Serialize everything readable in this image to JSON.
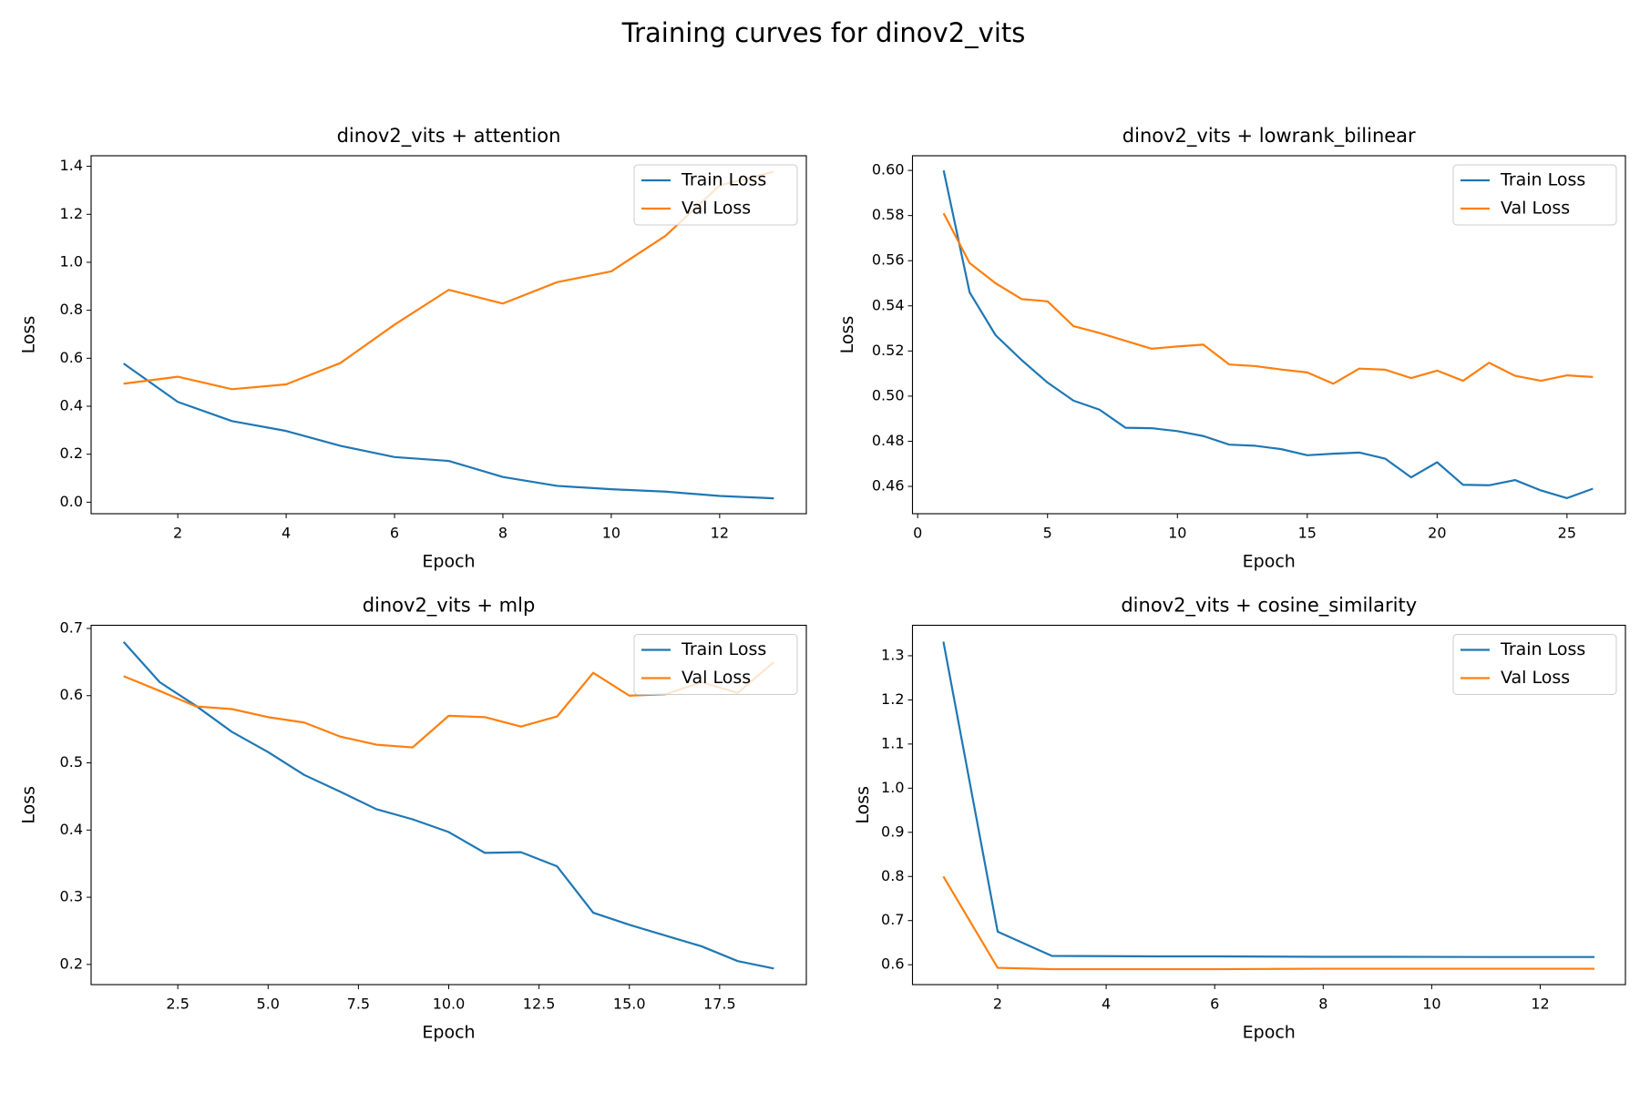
{
  "title": "Training curves for dinov2_vits",
  "chart_data": [
    {
      "type": "line",
      "title": "dinov2_vits + attention",
      "xlabel": "Epoch",
      "ylabel": "Loss",
      "x": [
        1,
        2,
        3,
        4,
        5,
        6,
        7,
        8,
        9,
        10,
        11,
        12,
        13
      ],
      "series": [
        {
          "name": "Train Loss",
          "color": "#1f77b4",
          "values": [
            0.578,
            0.418,
            0.338,
            0.297,
            0.235,
            0.188,
            0.172,
            0.105,
            0.068,
            0.054,
            0.044,
            0.026,
            0.016
          ]
        },
        {
          "name": "Val Loss",
          "color": "#ff7f0e",
          "values": [
            0.494,
            0.523,
            0.471,
            0.491,
            0.58,
            0.74,
            0.885,
            0.828,
            0.917,
            0.962,
            1.11,
            1.32,
            1.378
          ]
        }
      ],
      "xlim": [
        0.4,
        13.6
      ],
      "ylim": [
        -0.048,
        1.444
      ],
      "xticks": [
        2,
        4,
        6,
        8,
        10,
        12
      ],
      "yticks": [
        {
          "value": 0,
          "label": "0.0"
        },
        0.2,
        0.4,
        0.6,
        0.8,
        {
          "value": 1,
          "label": "1.0"
        },
        1.2,
        1.4
      ],
      "legend": "upper right"
    },
    {
      "type": "line",
      "title": "dinov2_vits + lowrank_bilinear",
      "xlabel": "Epoch",
      "ylabel": "Loss",
      "x": [
        1,
        2,
        3,
        4,
        5,
        6,
        7,
        8,
        9,
        10,
        11,
        12,
        13,
        14,
        15,
        16,
        17,
        18,
        19,
        20,
        21,
        22,
        23,
        24,
        25,
        26
      ],
      "series": [
        {
          "name": "Train Loss",
          "color": "#1f77b4",
          "values": [
            0.6,
            0.546,
            0.527,
            0.516,
            0.506,
            0.498,
            0.494,
            0.486,
            0.4858,
            0.4845,
            0.4823,
            0.4785,
            0.478,
            0.4765,
            0.4738,
            0.4745,
            0.475,
            0.4723,
            0.464,
            0.4707,
            0.4607,
            0.4605,
            0.4628,
            0.4582,
            0.4548,
            0.459
          ]
        },
        {
          "name": "Val Loss",
          "color": "#ff7f0e",
          "values": [
            0.581,
            0.559,
            0.55,
            0.543,
            0.542,
            0.531,
            0.528,
            0.5245,
            0.521,
            0.522,
            0.5228,
            0.514,
            0.5133,
            0.5118,
            0.5105,
            0.5055,
            0.5122,
            0.5117,
            0.508,
            0.5113,
            0.5068,
            0.5148,
            0.509,
            0.5068,
            0.5092,
            0.5085
          ]
        }
      ],
      "xlim": [
        -0.2,
        27.25
      ],
      "ylim": [
        0.4479,
        0.6065
      ],
      "xticks": [
        0,
        5,
        10,
        15,
        20,
        25
      ],
      "yticks": [
        0.46,
        0.48,
        {
          "value": 0.5,
          "label": "0.50"
        },
        0.52,
        0.54,
        0.56,
        0.58,
        {
          "value": 0.6,
          "label": "0.60"
        }
      ],
      "legend": "upper right"
    },
    {
      "type": "line",
      "title": "dinov2_vits + mlp",
      "xlabel": "Epoch",
      "ylabel": "Loss",
      "x": [
        1,
        2,
        3,
        4,
        5,
        6,
        7,
        8,
        9,
        10,
        11,
        12,
        13,
        14,
        15,
        16,
        17,
        18,
        19
      ],
      "series": [
        {
          "name": "Train Loss",
          "color": "#1f77b4",
          "values": [
            0.68,
            0.62,
            0.585,
            0.546,
            0.516,
            0.482,
            0.457,
            0.431,
            0.416,
            0.397,
            0.366,
            0.367,
            0.346,
            0.277,
            0.259,
            0.243,
            0.227,
            0.205,
            0.194
          ]
        },
        {
          "name": "Val Loss",
          "color": "#ff7f0e",
          "values": [
            0.629,
            0.607,
            0.584,
            0.58,
            0.568,
            0.56,
            0.539,
            0.527,
            0.523,
            0.57,
            0.568,
            0.554,
            0.569,
            0.634,
            0.6,
            0.602,
            0.62,
            0.604,
            0.65
          ]
        }
      ],
      "xlim": [
        0.1,
        19.9
      ],
      "ylim": [
        0.17,
        0.7047
      ],
      "xticks": [
        2.5,
        {
          "value": 5,
          "label": "5.0"
        },
        7.5,
        {
          "value": 10,
          "label": "10.0"
        },
        12.5,
        {
          "value": 15,
          "label": "15.0"
        },
        17.5
      ],
      "yticks": [
        0.2,
        0.3,
        0.4,
        0.5,
        0.6,
        0.7
      ],
      "legend": "upper right"
    },
    {
      "type": "line",
      "title": "dinov2_vits + cosine_similarity",
      "xlabel": "Epoch",
      "ylabel": "Loss",
      "x": [
        1,
        2,
        3,
        4,
        5,
        6,
        7,
        8,
        9,
        10,
        11,
        12,
        13
      ],
      "series": [
        {
          "name": "Train Loss",
          "color": "#1f77b4",
          "values": [
            1.332,
            0.675,
            0.62,
            0.6195,
            0.619,
            0.619,
            0.6185,
            0.618,
            0.618,
            0.6178,
            0.6175,
            0.6175,
            0.6175
          ]
        },
        {
          "name": "Val Loss",
          "color": "#ff7f0e",
          "values": [
            0.8,
            0.593,
            0.59,
            0.59,
            0.59,
            0.59,
            0.5905,
            0.591,
            0.591,
            0.591,
            0.591,
            0.591,
            0.591
          ]
        }
      ],
      "xlim": [
        0.43,
        13.57
      ],
      "ylim": [
        0.555,
        1.369
      ],
      "xticks": [
        2,
        4,
        6,
        8,
        10,
        12
      ],
      "yticks": [
        0.6,
        0.7,
        0.8,
        0.9,
        {
          "value": 1,
          "label": "1.0"
        },
        1.1,
        1.2,
        1.3
      ],
      "legend": "upper right"
    }
  ]
}
